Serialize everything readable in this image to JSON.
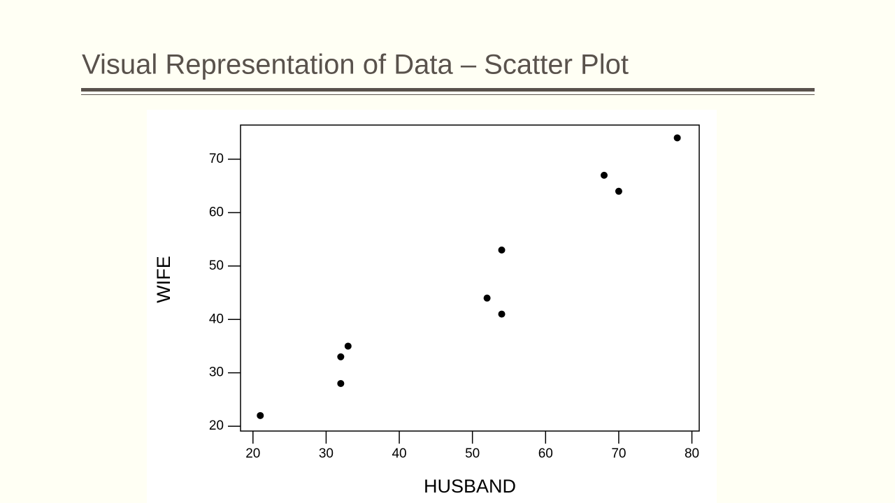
{
  "title": "Visual Representation of Data – Scatter Plot",
  "chart_data": {
    "type": "scatter",
    "x_label": "HUSBAND",
    "y_label": "WIFE",
    "x": [
      21,
      32,
      32,
      33,
      52,
      54,
      54,
      68,
      70,
      78
    ],
    "values": [
      22,
      28,
      33,
      35,
      44,
      41,
      53,
      67,
      64,
      74
    ],
    "color": "#000000",
    "xlim": [
      18.3,
      81
    ],
    "ylim": [
      19.1,
      76.4
    ],
    "xticks": [
      20,
      30,
      40,
      50,
      60,
      70,
      80
    ],
    "yticks": [
      20,
      30,
      40,
      50,
      60,
      70
    ],
    "grid": false
  }
}
